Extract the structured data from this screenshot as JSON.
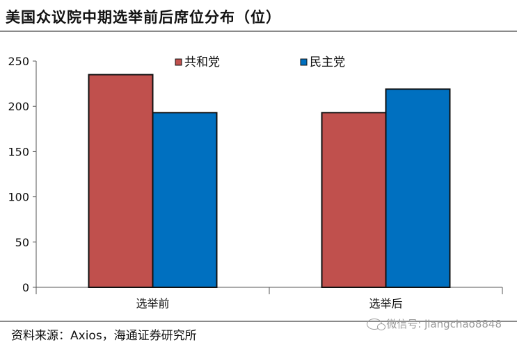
{
  "header": {
    "title": "美国众议院中期选举前后席位分布（位）"
  },
  "footer": {
    "source": "资料来源：Axios，海通证券研究所",
    "watermark": "微信号: jiangchao8848"
  },
  "colors": {
    "republican": "#C0504D",
    "democrat": "#0070C0"
  },
  "chart_data": {
    "type": "bar",
    "title": "美国众议院中期选举前后席位分布（位）",
    "categories": [
      "选举前",
      "选举后"
    ],
    "series": [
      {
        "name": "共和党",
        "color": "#C0504D",
        "values": [
          235,
          193
        ]
      },
      {
        "name": "民主党",
        "color": "#0070C0",
        "values": [
          193,
          219
        ]
      }
    ],
    "ylim": [
      0,
      250
    ],
    "yticks": [
      0,
      50,
      100,
      150,
      200,
      250
    ],
    "grid": false,
    "legend_position": "top"
  }
}
